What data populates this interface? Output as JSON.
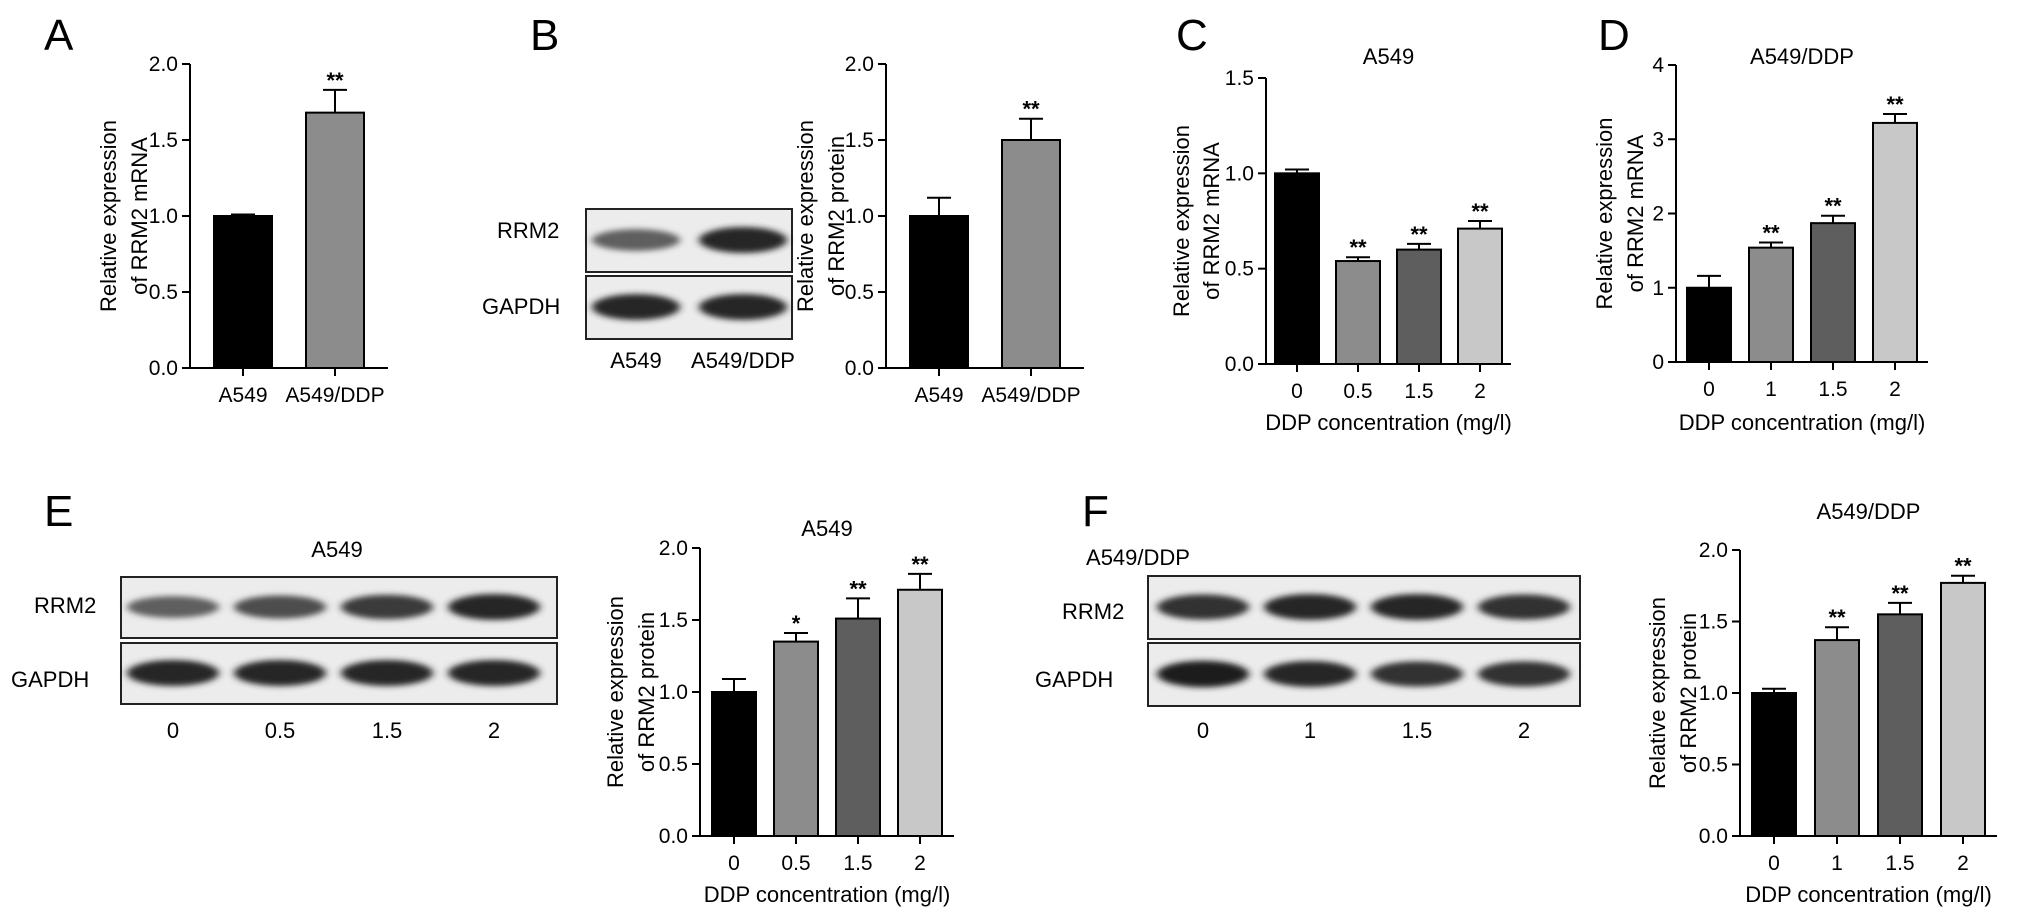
{
  "panels": [
    {
      "letter": "A"
    },
    {
      "letter": "B"
    },
    {
      "letter": "C"
    },
    {
      "letter": "D"
    },
    {
      "letter": "E"
    },
    {
      "letter": "F"
    }
  ],
  "blots": [
    {
      "id": "B",
      "title": "",
      "rows": [
        "RRM2",
        "GAPDH"
      ],
      "lanes": [
        "A549",
        "A549/DDP"
      ],
      "band_intensity": {
        "RRM2": [
          0.55,
          0.85
        ],
        "GAPDH": [
          0.85,
          0.85
        ]
      }
    },
    {
      "id": "E",
      "title": "A549",
      "rows": [
        "RRM2",
        "GAPDH"
      ],
      "lanes": [
        "0",
        "0.5",
        "1.5",
        "2"
      ],
      "band_intensity": {
        "RRM2": [
          0.55,
          0.65,
          0.75,
          0.85
        ],
        "GAPDH": [
          0.85,
          0.85,
          0.85,
          0.85
        ]
      }
    },
    {
      "id": "F",
      "title": "A549/DDP",
      "rows": [
        "RRM2",
        "GAPDH"
      ],
      "lanes": [
        "0",
        "1",
        "1.5",
        "2"
      ],
      "band_intensity": {
        "RRM2": [
          0.8,
          0.85,
          0.85,
          0.8
        ],
        "GAPDH": [
          0.9,
          0.85,
          0.8,
          0.8
        ]
      }
    }
  ],
  "chart_data": [
    {
      "id": "A",
      "type": "bar",
      "title": "",
      "categories": [
        "A549",
        "A549/DDP"
      ],
      "values": [
        1.0,
        1.68
      ],
      "errors": [
        0.01,
        0.15
      ],
      "significance": [
        "",
        "**"
      ],
      "colors": [
        "#000000",
        "#8c8c8c"
      ],
      "xlabel": "",
      "ylabel": [
        "Relative expression",
        "of RRM2 mRNA"
      ],
      "ylim": [
        0,
        2.0
      ],
      "yticks": [
        "0.0",
        "0.5",
        "1.0",
        "1.5",
        "2.0"
      ]
    },
    {
      "id": "B",
      "type": "bar",
      "title": "",
      "categories": [
        "A549",
        "A549/DDP"
      ],
      "values": [
        1.0,
        1.5
      ],
      "errors": [
        0.12,
        0.14
      ],
      "significance": [
        "",
        "**"
      ],
      "colors": [
        "#000000",
        "#8c8c8c"
      ],
      "xlabel": "",
      "ylabel": [
        "Relative expression",
        "of RRM2 protein"
      ],
      "ylim": [
        0,
        2.0
      ],
      "yticks": [
        "0.0",
        "0.5",
        "1.0",
        "1.5",
        "2.0"
      ]
    },
    {
      "id": "C",
      "type": "bar",
      "title": "A549",
      "categories": [
        "0",
        "0.5",
        "1.5",
        "2"
      ],
      "values": [
        1.0,
        0.54,
        0.6,
        0.71
      ],
      "errors": [
        0.02,
        0.02,
        0.03,
        0.04
      ],
      "significance": [
        "",
        "**",
        "**",
        "**"
      ],
      "colors": [
        "#000000",
        "#8c8c8c",
        "#5e5e5e",
        "#c8c8c8"
      ],
      "xlabel": "DDP concentration (mg/l)",
      "ylabel": [
        "Relative expression",
        "of RRM2 mRNA"
      ],
      "ylim": [
        0,
        1.5
      ],
      "yticks": [
        "0.0",
        "0.5",
        "1.0",
        "1.5"
      ]
    },
    {
      "id": "D",
      "type": "bar",
      "title": "A549/DDP",
      "categories": [
        "0",
        "1",
        "1.5",
        "2"
      ],
      "values": [
        1.0,
        1.54,
        1.87,
        3.22
      ],
      "errors": [
        0.16,
        0.07,
        0.1,
        0.12
      ],
      "significance": [
        "",
        "**",
        "**",
        "**"
      ],
      "colors": [
        "#000000",
        "#8c8c8c",
        "#5e5e5e",
        "#c8c8c8"
      ],
      "xlabel": "DDP concentration (mg/l)",
      "ylabel": [
        "Relative expression",
        "of RRM2 mRNA"
      ],
      "ylim": [
        0,
        4
      ],
      "yticks": [
        "0",
        "1",
        "2",
        "3",
        "4"
      ]
    },
    {
      "id": "E",
      "type": "bar",
      "title": "A549",
      "categories": [
        "0",
        "0.5",
        "1.5",
        "2"
      ],
      "values": [
        1.0,
        1.35,
        1.51,
        1.71
      ],
      "errors": [
        0.09,
        0.06,
        0.14,
        0.11
      ],
      "significance": [
        "",
        "*",
        "**",
        "**"
      ],
      "colors": [
        "#000000",
        "#8c8c8c",
        "#5e5e5e",
        "#c8c8c8"
      ],
      "xlabel": "DDP concentration (mg/l)",
      "ylabel": [
        "Relative expression",
        "of RRM2 protein"
      ],
      "ylim": [
        0,
        2.0
      ],
      "yticks": [
        "0.0",
        "0.5",
        "1.0",
        "1.5",
        "2.0"
      ]
    },
    {
      "id": "F",
      "type": "bar",
      "title": "A549/DDP",
      "categories": [
        "0",
        "1",
        "1.5",
        "2"
      ],
      "values": [
        1.0,
        1.37,
        1.55,
        1.77
      ],
      "errors": [
        0.03,
        0.09,
        0.08,
        0.05
      ],
      "significance": [
        "",
        "**",
        "**",
        "**"
      ],
      "colors": [
        "#000000",
        "#8c8c8c",
        "#5e5e5e",
        "#c8c8c8"
      ],
      "xlabel": "DDP concentration (mg/l)",
      "ylabel": [
        "Relative expression",
        "of RRM2 protein"
      ],
      "ylim": [
        0,
        2.0
      ],
      "yticks": [
        "0.0",
        "0.5",
        "1.0",
        "1.5",
        "2.0"
      ]
    }
  ]
}
